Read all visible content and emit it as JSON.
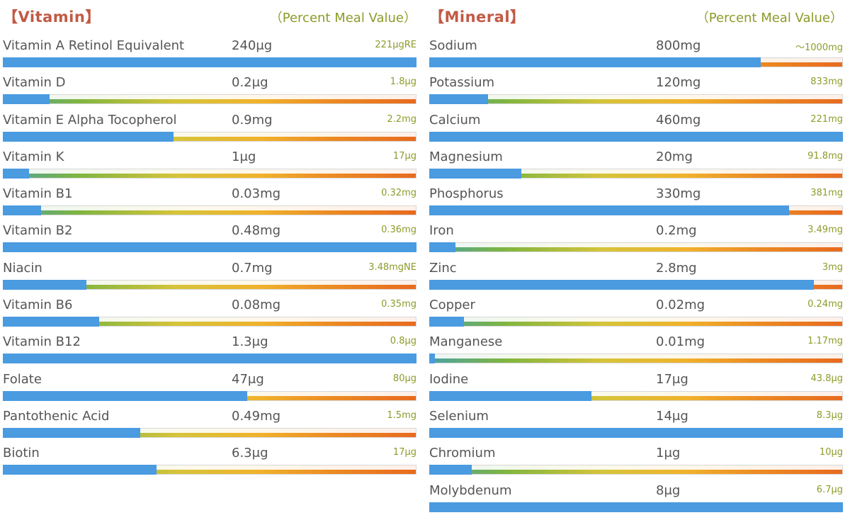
{
  "chart_data": [
    {
      "type": "bar",
      "title": "【Vitamin】",
      "subtitle": "（Percent Meal Value）",
      "categories": [
        "Vitamin A Retinol Equivalent",
        "Vitamin D",
        "Vitamin E Alpha Tocopherol",
        "Vitamin K",
        "Vitamin B1",
        "Vitamin B2",
        "Niacin",
        "Vitamin B6",
        "Vitamin B12",
        "Folate",
        "Pantothenic Acid",
        "Biotin"
      ],
      "amounts": [
        "240μg",
        "0.2μg",
        "0.9mg",
        "1μg",
        "0.03mg",
        "0.48mg",
        "0.7mg",
        "0.08mg",
        "1.3μg",
        "47μg",
        "0.49mg",
        "6.3μg"
      ],
      "reference": [
        "221μgRE",
        "1.8μg",
        "2.2mg",
        "17μg",
        "0.32mg",
        "0.36mg",
        "3.48mgNE",
        "0.35mg",
        "0.8μg",
        "80μg",
        "1.5mg",
        "17μg"
      ],
      "values": [
        100,
        11,
        41,
        6,
        9,
        100,
        20,
        23,
        100,
        59,
        33,
        37
      ],
      "ylim": [
        0,
        100
      ]
    },
    {
      "type": "bar",
      "title": "【Mineral】",
      "subtitle": "（Percent Meal Value）",
      "categories": [
        "Sodium",
        "Potassium",
        "Calcium",
        "Magnesium",
        "Phosphorus",
        "Iron",
        "Zinc",
        "Copper",
        "Manganese",
        "Iodine",
        "Selenium",
        "Chromium",
        "Molybdenum"
      ],
      "amounts": [
        "800mg",
        "120mg",
        "460mg",
        "20mg",
        "330mg",
        "0.2mg",
        "2.8mg",
        "0.02mg",
        "0.01mg",
        "17μg",
        "14μg",
        "1μg",
        "8μg"
      ],
      "reference": [
        "～1000mg",
        "833mg",
        "221mg",
        "91.8mg",
        "381mg",
        "3.49mg",
        "3mg",
        "0.24mg",
        "1.17mg",
        "43.8μg",
        "8.3μg",
        "10μg",
        "6.7μg"
      ],
      "values": [
        80,
        14,
        100,
        22,
        87,
        6,
        93,
        8,
        1,
        39,
        100,
        10,
        100
      ],
      "ylim": [
        0,
        100
      ]
    }
  ]
}
